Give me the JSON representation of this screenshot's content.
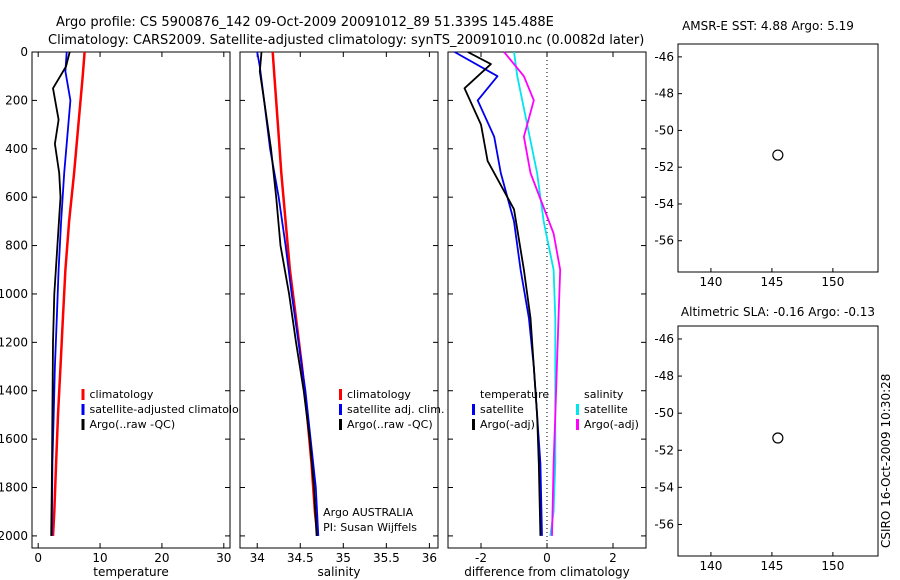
{
  "header": {
    "line1": "Argo profile: CS 5900876_142 09-Oct-2009 20091012_89 51.339S 145.488E",
    "line2": "Climatology: CARS2009. Satellite-adjusted climatology: synTS_20091010.nc (0.0082d later)"
  },
  "colors": {
    "climatology": "#ff0000",
    "satellite": "#0000ee",
    "argo": "#000000",
    "satellite_diff": "#00e5ee",
    "argo_adj": "#ff00ff"
  },
  "chart_data": [
    {
      "type": "line",
      "xlabel": "temperature",
      "xlim": [
        -1,
        31
      ],
      "ylim": [
        0,
        2050
      ],
      "xticks": [
        "0",
        "10",
        "20",
        "30"
      ],
      "yticks": [
        "0",
        "200",
        "400",
        "600",
        "800",
        "1000",
        "1200",
        "1400",
        "1600",
        "1800",
        "2000"
      ],
      "legend": [
        "climatology",
        "satellite-adjusted climatology",
        "Argo(..raw -QC)"
      ],
      "series": [
        {
          "name": "climatology",
          "color": "climatology",
          "x": [
            7.5,
            7.2,
            6.5,
            5.8,
            5.0,
            4.4,
            4.0,
            3.6,
            3.2,
            2.9,
            2.6,
            2.4
          ],
          "y": [
            0,
            100,
            300,
            500,
            700,
            900,
            1100,
            1300,
            1500,
            1700,
            1900,
            2000
          ]
        },
        {
          "name": "satellite-adjusted climatology",
          "color": "satellite",
          "x": [
            4.6,
            4.4,
            5.2,
            4.7,
            4.2,
            3.7,
            3.3,
            3.0,
            2.7,
            2.5,
            2.3,
            2.2
          ],
          "y": [
            0,
            80,
            200,
            350,
            500,
            700,
            900,
            1100,
            1300,
            1500,
            1700,
            2000
          ]
        },
        {
          "name": "Argo(..raw -QC)",
          "color": "argo",
          "x": [
            5.1,
            4.5,
            2.4,
            3.3,
            2.7,
            3.4,
            3.6,
            3.1,
            2.6,
            2.4,
            2.3,
            2.2,
            2.1
          ],
          "y": [
            0,
            60,
            150,
            280,
            380,
            500,
            600,
            800,
            1000,
            1200,
            1500,
            1800,
            2000
          ]
        }
      ]
    },
    {
      "type": "line",
      "xlabel": "salinity",
      "xlim": [
        33.8,
        36.1
      ],
      "ylim": [
        0,
        2050
      ],
      "xticks": [
        "34",
        "34.5",
        "35",
        "35.5",
        "36"
      ],
      "legend": [
        "climatology",
        "satellite adj. clim.",
        "Argo(..raw -QC)"
      ],
      "series": [
        {
          "name": "climatology",
          "color": "climatology",
          "x": [
            34.18,
            34.2,
            34.24,
            34.28,
            34.33,
            34.38,
            34.45,
            34.52,
            34.58,
            34.63,
            34.67,
            34.7
          ],
          "y": [
            0,
            100,
            300,
            500,
            700,
            900,
            1100,
            1300,
            1500,
            1700,
            1900,
            2000
          ]
        },
        {
          "name": "satellite adj. clim.",
          "color": "satellite",
          "x": [
            34.0,
            34.03,
            34.08,
            34.15,
            34.25,
            34.33,
            34.4,
            34.48,
            34.56,
            34.62,
            34.68,
            34.71
          ],
          "y": [
            0,
            60,
            200,
            400,
            600,
            800,
            1000,
            1200,
            1400,
            1600,
            1800,
            2000
          ]
        },
        {
          "name": "Argo(..raw -QC)",
          "color": "argo",
          "x": [
            34.05,
            34.03,
            34.08,
            34.16,
            34.22,
            34.27,
            34.37,
            34.45,
            34.54,
            34.61,
            34.66,
            34.69
          ],
          "y": [
            0,
            80,
            200,
            400,
            600,
            800,
            1000,
            1200,
            1400,
            1600,
            1800,
            2000
          ]
        }
      ],
      "annotations": [
        "Argo AUSTRALIA",
        "PI: Susan Wijffels"
      ]
    },
    {
      "type": "line",
      "xlabel": "difference from climatology",
      "xlim": [
        -3,
        3
      ],
      "ylim": [
        0,
        2050
      ],
      "xticks": [
        "-2",
        "0",
        "2"
      ],
      "legend_groups": [
        {
          "title": "temperature",
          "entries": [
            "satellite",
            "Argo(-adj)"
          ]
        },
        {
          "title": "salinity",
          "entries": [
            "satellite",
            "Argo(-adj)"
          ]
        }
      ],
      "series": [
        {
          "name": "temperature satellite",
          "color": "satellite",
          "x": [
            -2.8,
            -1.5,
            -2.1,
            -1.6,
            -1.4,
            -1.0,
            -0.8,
            -0.55,
            -0.4,
            -0.3,
            -0.2,
            -0.15
          ],
          "y": [
            0,
            100,
            200,
            350,
            500,
            700,
            900,
            1100,
            1300,
            1500,
            1700,
            2000
          ]
        },
        {
          "name": "temperature Argo(-adj)",
          "color": "argo",
          "x": [
            -2.4,
            -1.7,
            -2.5,
            -2.0,
            -1.8,
            -1.0,
            -0.7,
            -0.5,
            -0.4,
            -0.3,
            -0.25,
            -0.2
          ],
          "y": [
            0,
            50,
            150,
            300,
            450,
            650,
            900,
            1100,
            1300,
            1500,
            1700,
            2000
          ]
        },
        {
          "name": "salinity satellite",
          "color": "satellite_diff",
          "x": [
            -1.0,
            -0.9,
            -0.6,
            -0.3,
            -0.1,
            0.2,
            0.25,
            0.25,
            0.25,
            0.25,
            0.2,
            0.1
          ],
          "y": [
            0,
            100,
            300,
            500,
            700,
            900,
            1100,
            1300,
            1500,
            1700,
            1900,
            2000
          ]
        },
        {
          "name": "salinity Argo(-adj)",
          "color": "argo_adj",
          "x": [
            -1.3,
            -0.7,
            -0.4,
            -0.7,
            -0.5,
            0.2,
            0.4,
            0.35,
            0.3,
            0.25,
            0.2,
            0.15
          ],
          "y": [
            0,
            100,
            200,
            350,
            500,
            750,
            900,
            1100,
            1300,
            1500,
            1700,
            2000
          ]
        }
      ]
    },
    {
      "type": "heatmap",
      "title": "AMSR-E SST: 4.88 Argo: 5.19",
      "xlim": [
        137.3,
        153.7
      ],
      "ylim": [
        -57.7,
        -45.3
      ],
      "xticks": [
        "140",
        "145",
        "150"
      ],
      "yticks": [
        "-46",
        "-48",
        "-50",
        "-52",
        "-54",
        "-56"
      ],
      "marker": {
        "x": 145.488,
        "y": -51.339
      }
    },
    {
      "type": "heatmap",
      "title": "Altimetric SLA: -0.16 Argo: -0.13",
      "xlim": [
        137.3,
        153.7
      ],
      "ylim": [
        -57.7,
        -45.3
      ],
      "xticks": [
        "140",
        "145",
        "150"
      ],
      "yticks": [
        "-46",
        "-48",
        "-50",
        "-52",
        "-54",
        "-56"
      ],
      "marker": {
        "x": 145.488,
        "y": -51.339
      }
    }
  ],
  "footer": {
    "credit": "CSIRO 16-Oct-2009 10:30:28"
  }
}
